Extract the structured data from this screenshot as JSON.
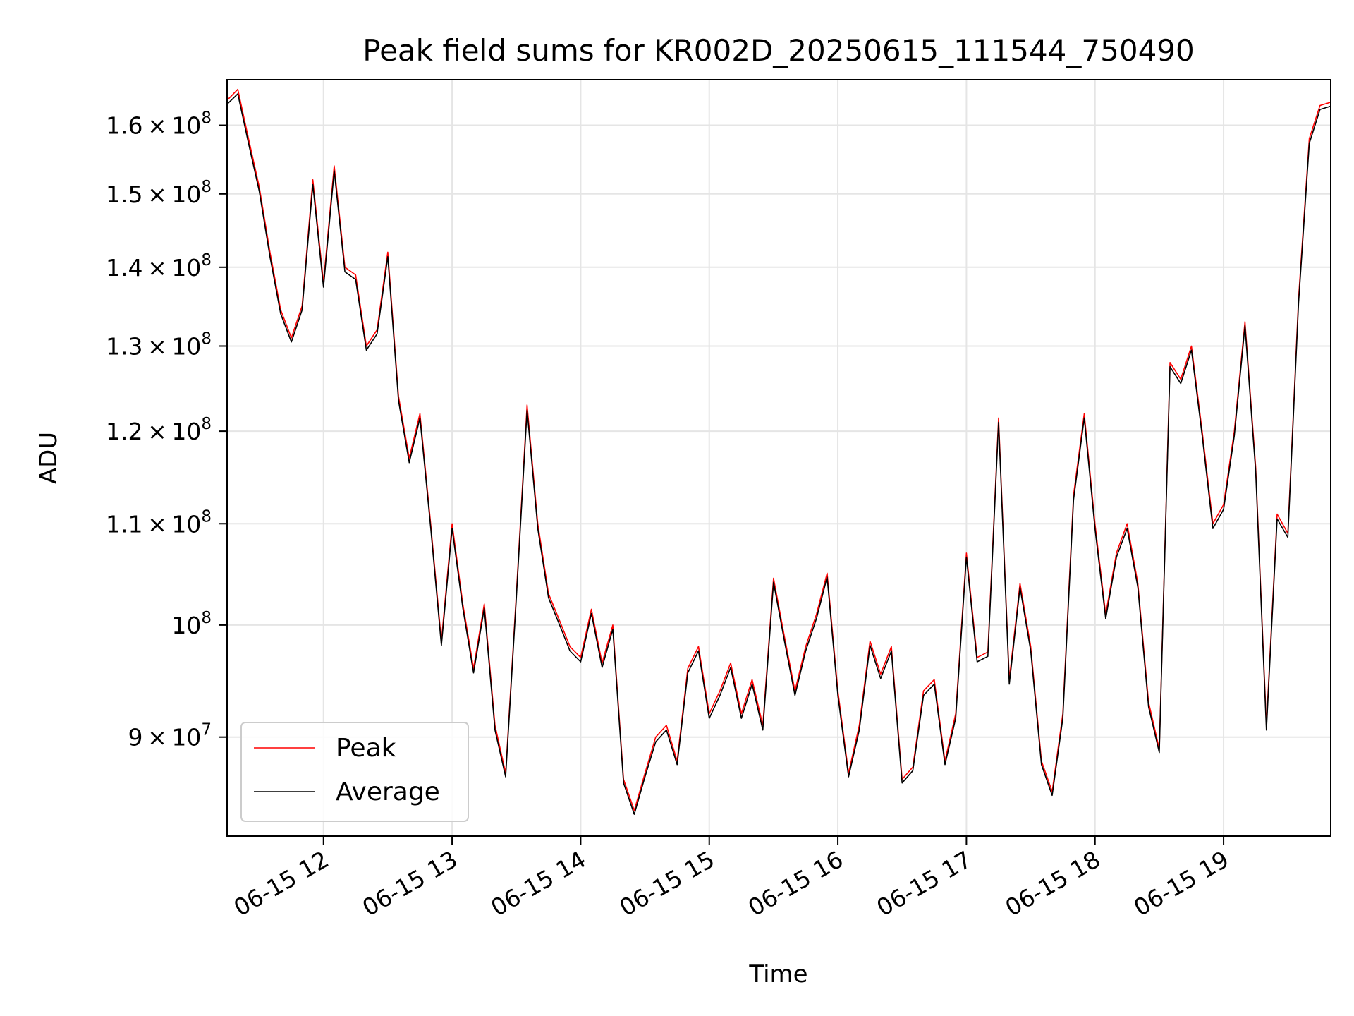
{
  "chart_data": {
    "type": "line",
    "title": "Peak field sums for KR002D_20250615_111544_750490",
    "xlabel": "Time",
    "ylabel": "ADU",
    "x_type": "datetime",
    "x_range": [
      "2025-06-15T11:15",
      "2025-06-15T19:50"
    ],
    "yscale": "log",
    "ylim": [
      82000000,
      167000000
    ],
    "grid": true,
    "legend_position": "lower-left",
    "x_ticks": [
      {
        "value": "2025-06-15T12:00",
        "label": "06-15 12"
      },
      {
        "value": "2025-06-15T13:00",
        "label": "06-15 13"
      },
      {
        "value": "2025-06-15T14:00",
        "label": "06-15 14"
      },
      {
        "value": "2025-06-15T15:00",
        "label": "06-15 15"
      },
      {
        "value": "2025-06-15T16:00",
        "label": "06-15 16"
      },
      {
        "value": "2025-06-15T17:00",
        "label": "06-15 17"
      },
      {
        "value": "2025-06-15T18:00",
        "label": "06-15 18"
      },
      {
        "value": "2025-06-15T19:00",
        "label": "06-15 19"
      }
    ],
    "y_ticks": [
      {
        "value": 90000000,
        "mantissa": "9",
        "exponent": "7"
      },
      {
        "value": 100000000,
        "mantissa": "",
        "exponent": "8"
      },
      {
        "value": 110000000,
        "mantissa": "1.1",
        "exponent": "8"
      },
      {
        "value": 120000000,
        "mantissa": "1.2",
        "exponent": "8"
      },
      {
        "value": 130000000,
        "mantissa": "1.3",
        "exponent": "8"
      },
      {
        "value": 140000000,
        "mantissa": "1.4",
        "exponent": "8"
      },
      {
        "value": 150000000,
        "mantissa": "1.5",
        "exponent": "8"
      },
      {
        "value": 160000000,
        "mantissa": "1.6",
        "exponent": "8"
      }
    ],
    "series": [
      {
        "name": "Peak",
        "color": "#ff0000",
        "x": [
          "2025-06-15T11:15",
          "2025-06-15T11:20",
          "2025-06-15T11:25",
          "2025-06-15T11:30",
          "2025-06-15T11:35",
          "2025-06-15T11:40",
          "2025-06-15T11:45",
          "2025-06-15T11:50",
          "2025-06-15T11:55",
          "2025-06-15T12:00",
          "2025-06-15T12:05",
          "2025-06-15T12:10",
          "2025-06-15T12:15",
          "2025-06-15T12:20",
          "2025-06-15T12:25",
          "2025-06-15T12:30",
          "2025-06-15T12:35",
          "2025-06-15T12:40",
          "2025-06-15T12:45",
          "2025-06-15T12:50",
          "2025-06-15T12:55",
          "2025-06-15T13:00",
          "2025-06-15T13:05",
          "2025-06-15T13:10",
          "2025-06-15T13:15",
          "2025-06-15T13:20",
          "2025-06-15T13:25",
          "2025-06-15T13:30",
          "2025-06-15T13:35",
          "2025-06-15T13:40",
          "2025-06-15T13:45",
          "2025-06-15T13:50",
          "2025-06-15T13:55",
          "2025-06-15T14:00",
          "2025-06-15T14:05",
          "2025-06-15T14:10",
          "2025-06-15T14:15",
          "2025-06-15T14:20",
          "2025-06-15T14:25",
          "2025-06-15T14:30",
          "2025-06-15T14:35",
          "2025-06-15T14:40",
          "2025-06-15T14:45",
          "2025-06-15T14:50",
          "2025-06-15T14:55",
          "2025-06-15T15:00",
          "2025-06-15T15:05",
          "2025-06-15T15:10",
          "2025-06-15T15:15",
          "2025-06-15T15:20",
          "2025-06-15T15:25",
          "2025-06-15T15:30",
          "2025-06-15T15:35",
          "2025-06-15T15:40",
          "2025-06-15T15:45",
          "2025-06-15T15:50",
          "2025-06-15T15:55",
          "2025-06-15T16:00",
          "2025-06-15T16:05",
          "2025-06-15T16:10",
          "2025-06-15T16:15",
          "2025-06-15T16:20",
          "2025-06-15T16:25",
          "2025-06-15T16:30",
          "2025-06-15T16:35",
          "2025-06-15T16:40",
          "2025-06-15T16:45",
          "2025-06-15T16:50",
          "2025-06-15T16:55",
          "2025-06-15T17:00",
          "2025-06-15T17:05",
          "2025-06-15T17:10",
          "2025-06-15T17:15",
          "2025-06-15T17:20",
          "2025-06-15T17:25",
          "2025-06-15T17:30",
          "2025-06-15T17:35",
          "2025-06-15T17:40",
          "2025-06-15T17:45",
          "2025-06-15T17:50",
          "2025-06-15T17:55",
          "2025-06-15T18:00",
          "2025-06-15T18:05",
          "2025-06-15T18:10",
          "2025-06-15T18:15",
          "2025-06-15T18:20",
          "2025-06-15T18:25",
          "2025-06-15T18:30",
          "2025-06-15T18:35",
          "2025-06-15T18:40",
          "2025-06-15T18:45",
          "2025-06-15T18:50",
          "2025-06-15T18:55",
          "2025-06-15T19:00",
          "2025-06-15T19:05",
          "2025-06-15T19:10",
          "2025-06-15T19:15",
          "2025-06-15T19:20",
          "2025-06-15T19:25",
          "2025-06-15T19:30",
          "2025-06-15T19:35",
          "2025-06-15T19:40",
          "2025-06-15T19:45",
          "2025-06-15T19:50"
        ],
        "values": [
          163800000,
          165500000,
          158000000,
          151000000,
          142000000,
          134500000,
          131000000,
          135000000,
          152000000,
          138000000,
          154000000,
          140000000,
          139000000,
          130000000,
          132000000,
          142000000,
          124000000,
          117000000,
          122000000,
          110000000,
          98500000,
          110000000,
          102000000,
          96000000,
          102000000,
          91000000,
          87000000,
          103000000,
          123000000,
          110000000,
          103000000,
          100500000,
          98000000,
          97000000,
          101500000,
          96500000,
          100000000,
          86500000,
          84000000,
          87000000,
          90000000,
          91000000,
          88000000,
          96000000,
          98000000,
          92000000,
          94000000,
          96500000,
          92000000,
          95000000,
          91000000,
          104500000,
          99000000,
          94000000,
          98000000,
          101000000,
          105000000,
          94000000,
          87000000,
          91000000,
          98500000,
          95500000,
          98000000,
          86500000,
          87500000,
          94000000,
          95000000,
          88000000,
          92000000,
          107000000,
          97000000,
          97500000,
          121500000,
          95000000,
          104000000,
          98000000,
          88000000,
          85500000,
          92000000,
          113000000,
          122000000,
          110000000,
          101000000,
          107000000,
          110000000,
          104000000,
          93000000,
          89000000,
          128000000,
          126000000,
          130000000,
          120000000,
          110000000,
          112000000,
          120000000,
          133000000,
          116000000,
          91000000,
          111000000,
          109000000,
          136000000,
          158000000,
          163000000,
          163500000
        ]
      },
      {
        "name": "Average",
        "color": "#000000",
        "x": [
          "2025-06-15T11:15",
          "2025-06-15T11:20",
          "2025-06-15T11:25",
          "2025-06-15T11:30",
          "2025-06-15T11:35",
          "2025-06-15T11:40",
          "2025-06-15T11:45",
          "2025-06-15T11:50",
          "2025-06-15T11:55",
          "2025-06-15T12:00",
          "2025-06-15T12:05",
          "2025-06-15T12:10",
          "2025-06-15T12:15",
          "2025-06-15T12:20",
          "2025-06-15T12:25",
          "2025-06-15T12:30",
          "2025-06-15T12:35",
          "2025-06-15T12:40",
          "2025-06-15T12:45",
          "2025-06-15T12:50",
          "2025-06-15T12:55",
          "2025-06-15T13:00",
          "2025-06-15T13:05",
          "2025-06-15T13:10",
          "2025-06-15T13:15",
          "2025-06-15T13:20",
          "2025-06-15T13:25",
          "2025-06-15T13:30",
          "2025-06-15T13:35",
          "2025-06-15T13:40",
          "2025-06-15T13:45",
          "2025-06-15T13:50",
          "2025-06-15T13:55",
          "2025-06-15T14:00",
          "2025-06-15T14:05",
          "2025-06-15T14:10",
          "2025-06-15T14:15",
          "2025-06-15T14:20",
          "2025-06-15T14:25",
          "2025-06-15T14:30",
          "2025-06-15T14:35",
          "2025-06-15T14:40",
          "2025-06-15T14:45",
          "2025-06-15T14:50",
          "2025-06-15T14:55",
          "2025-06-15T15:00",
          "2025-06-15T15:05",
          "2025-06-15T15:10",
          "2025-06-15T15:15",
          "2025-06-15T15:20",
          "2025-06-15T15:25",
          "2025-06-15T15:30",
          "2025-06-15T15:35",
          "2025-06-15T15:40",
          "2025-06-15T15:45",
          "2025-06-15T15:50",
          "2025-06-15T15:55",
          "2025-06-15T16:00",
          "2025-06-15T16:05",
          "2025-06-15T16:10",
          "2025-06-15T16:15",
          "2025-06-15T16:20",
          "2025-06-15T16:25",
          "2025-06-15T16:30",
          "2025-06-15T16:35",
          "2025-06-15T16:40",
          "2025-06-15T16:45",
          "2025-06-15T16:50",
          "2025-06-15T16:55",
          "2025-06-15T17:00",
          "2025-06-15T17:05",
          "2025-06-15T17:10",
          "2025-06-15T17:15",
          "2025-06-15T17:20",
          "2025-06-15T17:25",
          "2025-06-15T17:30",
          "2025-06-15T17:35",
          "2025-06-15T17:40",
          "2025-06-15T17:45",
          "2025-06-15T17:50",
          "2025-06-15T17:55",
          "2025-06-15T18:00",
          "2025-06-15T18:05",
          "2025-06-15T18:10",
          "2025-06-15T18:15",
          "2025-06-15T18:20",
          "2025-06-15T18:25",
          "2025-06-15T18:30",
          "2025-06-15T18:35",
          "2025-06-15T18:40",
          "2025-06-15T18:45",
          "2025-06-15T18:50",
          "2025-06-15T18:55",
          "2025-06-15T19:00",
          "2025-06-15T19:05",
          "2025-06-15T19:10",
          "2025-06-15T19:15",
          "2025-06-15T19:20",
          "2025-06-15T19:25",
          "2025-06-15T19:30",
          "2025-06-15T19:35",
          "2025-06-15T19:40",
          "2025-06-15T19:45",
          "2025-06-15T19:50"
        ],
        "values": [
          163200000,
          164800000,
          157300000,
          150400000,
          141400000,
          134000000,
          130500000,
          134500000,
          151300000,
          137400000,
          153300000,
          139400000,
          138400000,
          129500000,
          131500000,
          141400000,
          123500000,
          116500000,
          121500000,
          109600000,
          98100000,
          109500000,
          101600000,
          95600000,
          101600000,
          90600000,
          86700000,
          102600000,
          122400000,
          109500000,
          102600000,
          100100000,
          97600000,
          96600000,
          101100000,
          96100000,
          99600000,
          86200000,
          83700000,
          86700000,
          89600000,
          90600000,
          87700000,
          95600000,
          97600000,
          91600000,
          93600000,
          96100000,
          91600000,
          94600000,
          90600000,
          104100000,
          98600000,
          93600000,
          97600000,
          100600000,
          104600000,
          93600000,
          86700000,
          90600000,
          98100000,
          95100000,
          97600000,
          86200000,
          87200000,
          93600000,
          94600000,
          87700000,
          91600000,
          106600000,
          96600000,
          97100000,
          121000000,
          94600000,
          103600000,
          97600000,
          87700000,
          85200000,
          91600000,
          112500000,
          121500000,
          109500000,
          100600000,
          106600000,
          109500000,
          103600000,
          92600000,
          88700000,
          127500000,
          125500000,
          129500000,
          119500000,
          109500000,
          111500000,
          119500000,
          132500000,
          115500000,
          90600000,
          110500000,
          108600000,
          135400000,
          157300000,
          162400000,
          162900000
        ]
      }
    ]
  }
}
